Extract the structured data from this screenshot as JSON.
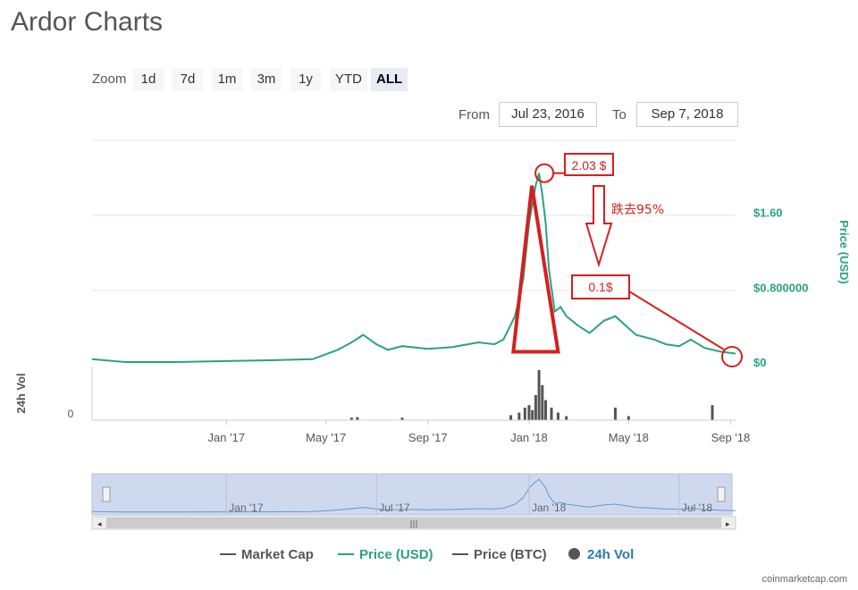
{
  "page": {
    "title": "Ardor Charts",
    "zoom_label": "Zoom",
    "zoom_buttons": [
      "1d",
      "7d",
      "1m",
      "3m",
      "1y",
      "YTD",
      "ALL"
    ],
    "zoom_active": "ALL",
    "from_label": "From",
    "from_value": "Jul 23, 2016",
    "to_label": "To",
    "to_value": "Sep 7, 2018",
    "credit": "coinmarketcap.com"
  },
  "legend": [
    {
      "label": "Market Cap",
      "color": "#555555",
      "marker": "line"
    },
    {
      "label": "Price (USD)",
      "color": "#2aa37c",
      "marker": "line"
    },
    {
      "label": "Price (BTC)",
      "color": "#555555",
      "marker": "line"
    },
    {
      "label": "24h Vol",
      "color": "#2a7ab5",
      "marker": "dot"
    }
  ],
  "annotations": {
    "peak_label": "2.03 $",
    "drop_label": "跌去95%",
    "current_label": "0.1$"
  },
  "chart_data": {
    "type": "line",
    "title": "Ardor Charts",
    "ylabel": "Price (USD)",
    "y_tick_labels": [
      "$1.60",
      "$0.800000",
      "$0"
    ],
    "ylim": [
      0,
      2.4
    ],
    "vol_axis_label": "24h Vol",
    "vol_tick_label": "0",
    "x_tick_labels": [
      "Jan '17",
      "May '17",
      "Sep '17",
      "Jan '18",
      "May '18",
      "Sep '18"
    ],
    "navigator_tick_labels": [
      "Jan '17",
      "Jul '17",
      "Jan '18",
      "Jul '18"
    ],
    "series": [
      {
        "name": "Price (USD)",
        "color": "#2aa37c",
        "x": [
          "2016-07-23",
          "2016-09-01",
          "2016-11-01",
          "2017-01-01",
          "2017-03-01",
          "2017-04-15",
          "2017-05-15",
          "2017-06-01",
          "2017-06-15",
          "2017-07-01",
          "2017-07-15",
          "2017-08-01",
          "2017-09-01",
          "2017-10-01",
          "2017-11-01",
          "2017-11-20",
          "2017-12-01",
          "2017-12-15",
          "2017-12-25",
          "2018-01-01",
          "2018-01-05",
          "2018-01-09",
          "2018-01-13",
          "2018-01-17",
          "2018-01-21",
          "2018-01-25",
          "2018-02-01",
          "2018-02-08",
          "2018-02-15",
          "2018-03-01",
          "2018-03-15",
          "2018-04-01",
          "2018-04-15",
          "2018-04-25",
          "2018-05-10",
          "2018-06-01",
          "2018-06-15",
          "2018-07-01",
          "2018-07-15",
          "2018-08-01",
          "2018-08-20",
          "2018-09-07"
        ],
        "values": [
          0.04,
          0.01,
          0.01,
          0.02,
          0.03,
          0.04,
          0.14,
          0.22,
          0.3,
          0.2,
          0.14,
          0.18,
          0.15,
          0.17,
          0.22,
          0.2,
          0.25,
          0.5,
          0.9,
          1.5,
          1.7,
          1.9,
          2.03,
          1.8,
          1.5,
          1.0,
          0.55,
          0.6,
          0.5,
          0.4,
          0.32,
          0.45,
          0.5,
          0.42,
          0.3,
          0.25,
          0.2,
          0.18,
          0.25,
          0.16,
          0.12,
          0.1
        ]
      }
    ],
    "volume_24h": {
      "x": [
        "2017-06-01",
        "2017-06-08",
        "2017-08-01",
        "2017-12-10",
        "2017-12-20",
        "2017-12-27",
        "2018-01-01",
        "2018-01-05",
        "2018-01-09",
        "2018-01-13",
        "2018-01-17",
        "2018-01-21",
        "2018-01-28",
        "2018-02-05",
        "2018-02-15",
        "2018-04-15",
        "2018-05-01",
        "2018-08-10"
      ],
      "relative_values": [
        0.05,
        0.06,
        0.05,
        0.1,
        0.15,
        0.25,
        0.3,
        0.2,
        0.5,
        1.0,
        0.7,
        0.4,
        0.25,
        0.15,
        0.08,
        0.25,
        0.08,
        0.3
      ]
    }
  }
}
